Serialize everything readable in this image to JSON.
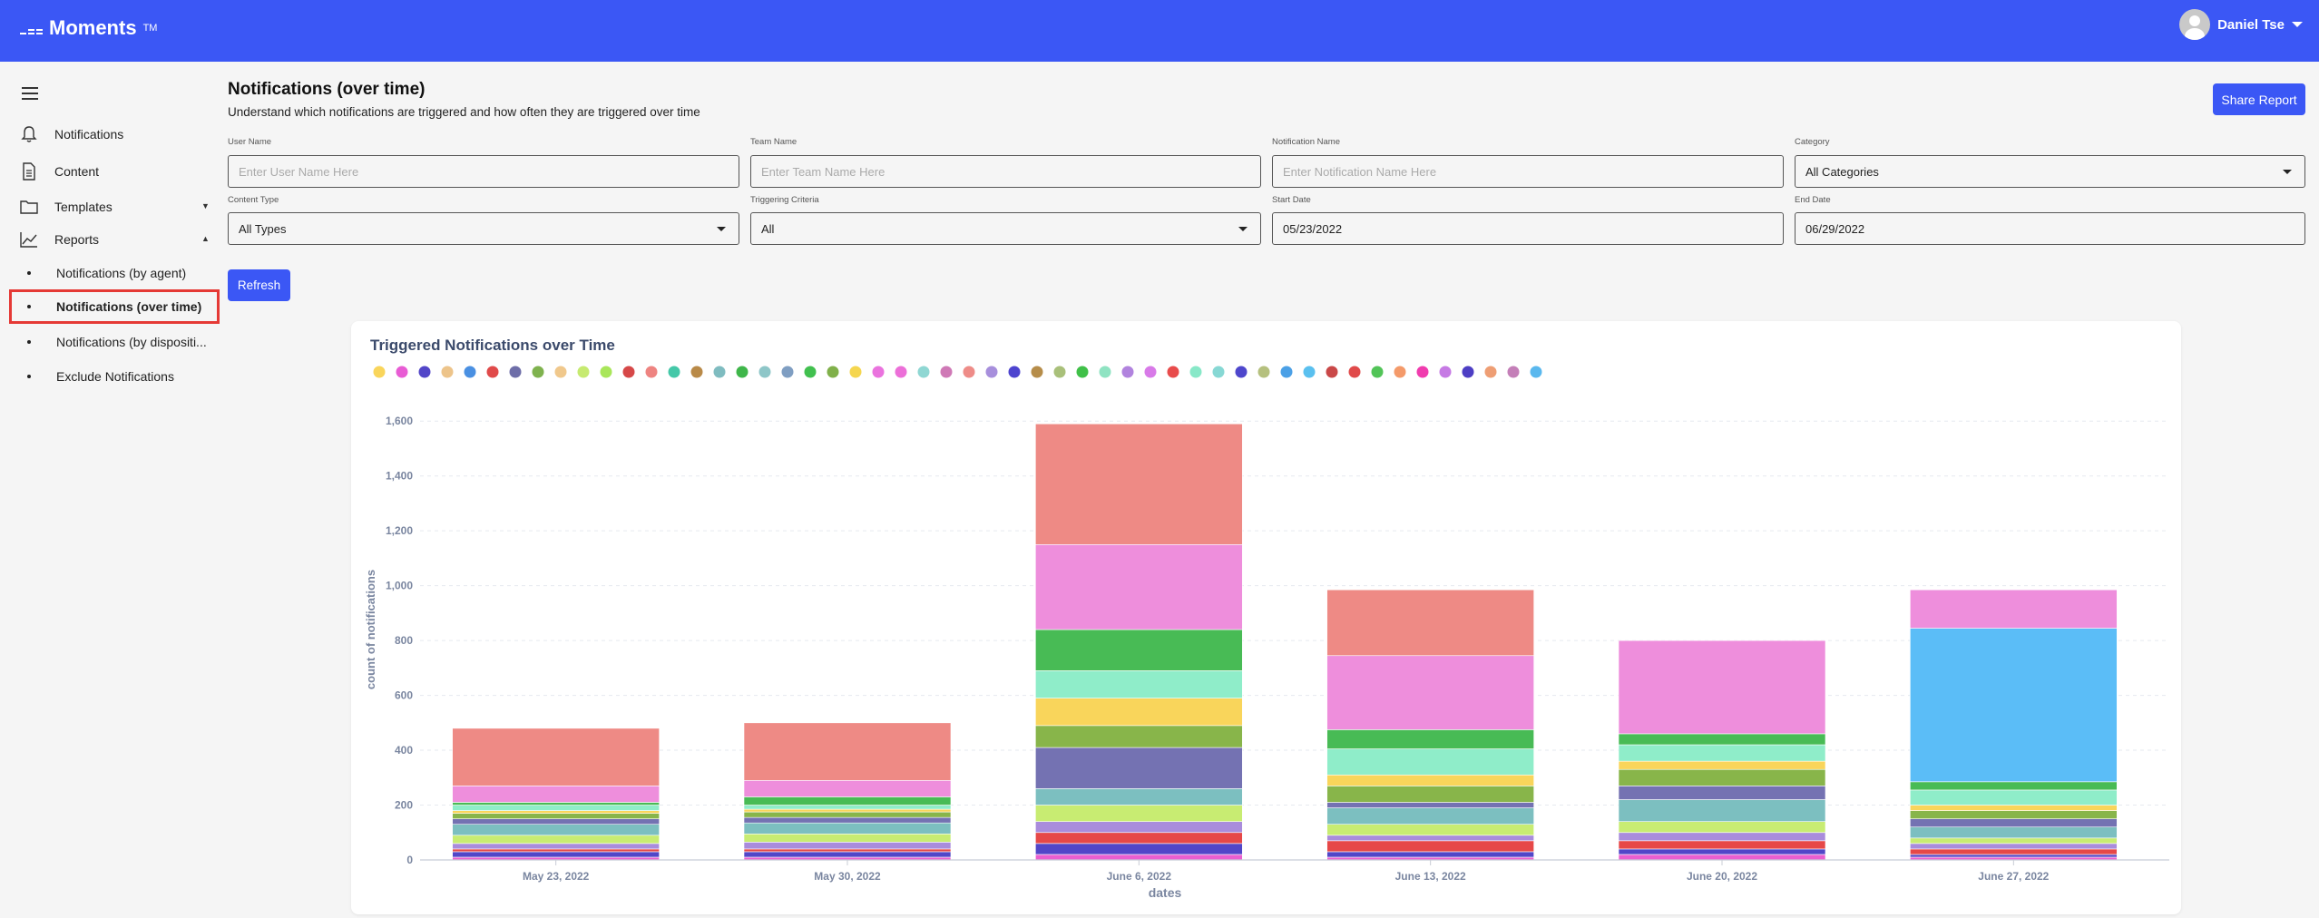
{
  "app": {
    "name": "Moments",
    "trademark": "TM"
  },
  "user": {
    "name": "Daniel Tse"
  },
  "sidebar": {
    "items": [
      {
        "label": "Notifications"
      },
      {
        "label": "Content"
      },
      {
        "label": "Templates"
      },
      {
        "label": "Reports"
      }
    ],
    "subitems": [
      {
        "label": "Notifications (by agent)"
      },
      {
        "label": "Notifications (over time)"
      },
      {
        "label": "Notifications (by dispositi..."
      },
      {
        "label": "Exclude Notifications"
      }
    ]
  },
  "header": {
    "title": "Notifications (over time)",
    "subtitle": "Understand which notifications are triggered and how often they are triggered over time",
    "share_label": "Share Report"
  },
  "filters": {
    "user_name": {
      "label": "User Name",
      "placeholder": "Enter User Name Here"
    },
    "team_name": {
      "label": "Team Name",
      "placeholder": "Enter Team Name Here"
    },
    "notification_name": {
      "label": "Notification Name",
      "placeholder": "Enter Notification Name Here"
    },
    "category": {
      "label": "Category",
      "value": "All Categories"
    },
    "content_type": {
      "label": "Content Type",
      "value": "All Types"
    },
    "triggering_criteria": {
      "label": "Triggering Criteria",
      "value": "All"
    },
    "start_date": {
      "label": "Start Date",
      "value": "05/23/2022"
    },
    "end_date": {
      "label": "End Date",
      "value": "06/29/2022"
    },
    "refresh_label": "Refresh"
  },
  "chart_data": {
    "type": "bar",
    "stacked": true,
    "title": "Triggered Notifications over Time",
    "xlabel": "dates",
    "ylabel": "count of notifications",
    "ylim": [
      0,
      1700
    ],
    "yticks": [
      0,
      200,
      400,
      600,
      800,
      1000,
      1200,
      1400,
      1600
    ],
    "ytick_labels": [
      "0",
      "200",
      "400",
      "600",
      "800",
      "1,000",
      "1,200",
      "1,400",
      "1,600"
    ],
    "categories": [
      "May 23, 2022",
      "May 30, 2022",
      "June 6, 2022",
      "June 13, 2022",
      "June 20, 2022",
      "June 27, 2022"
    ],
    "legend_colors": [
      "#f9d55b",
      "#e85cd4",
      "#5246c8",
      "#edc48a",
      "#4a90e2",
      "#e04a4a",
      "#6e6ea8",
      "#7fb24e",
      "#f0c88c",
      "#c6ea70",
      "#a9e65a",
      "#d64848",
      "#ee8481",
      "#44c8a8",
      "#b98a48",
      "#7fbcc0",
      "#3fb64a",
      "#8ec6c8",
      "#7f9ec2",
      "#41c04f",
      "#80b04a",
      "#f5d64f",
      "#ea73de",
      "#ec6fd8",
      "#8fd7d3",
      "#cf79b6",
      "#ee8c88",
      "#a78fdc",
      "#4d44cf",
      "#b68d4a",
      "#a9c07a",
      "#40c048",
      "#8fe3c2",
      "#b183de",
      "#d87ae8",
      "#e84b4b",
      "#88e8c8",
      "#87d8d4",
      "#4e47cc",
      "#b5c07e",
      "#4ba0e6",
      "#5ac0ef",
      "#c94848",
      "#e04a4a",
      "#52c458",
      "#f49a6a",
      "#f03cae",
      "#c67ae4",
      "#4d3ec4",
      "#ee9e74",
      "#c47fb8",
      "#5ab8ee"
    ],
    "series": [
      {
        "color": "#ee8a85",
        "values": [
          210,
          210,
          440,
          240,
          0,
          0
        ]
      },
      {
        "color": "#ee8edc",
        "values": [
          60,
          60,
          310,
          270,
          340,
          140
        ]
      },
      {
        "color": "#5bbdf7",
        "values": [
          0,
          0,
          0,
          0,
          0,
          560
        ]
      },
      {
        "color": "#48bb55",
        "values": [
          10,
          30,
          150,
          70,
          40,
          30
        ]
      },
      {
        "color": "#8fedc9",
        "values": [
          20,
          15,
          100,
          95,
          60,
          55
        ]
      },
      {
        "color": "#f9d55b",
        "values": [
          10,
          10,
          100,
          40,
          30,
          20
        ]
      },
      {
        "color": "#88b54a",
        "values": [
          20,
          20,
          80,
          60,
          60,
          30
        ]
      },
      {
        "color": "#7472b2",
        "values": [
          20,
          20,
          150,
          20,
          50,
          30
        ]
      },
      {
        "color": "#7cbfc0",
        "values": [
          40,
          40,
          60,
          60,
          80,
          40
        ]
      },
      {
        "color": "#c8ec72",
        "values": [
          30,
          30,
          60,
          40,
          40,
          20
        ]
      },
      {
        "color": "#a98cdc",
        "values": [
          20,
          25,
          40,
          20,
          30,
          20
        ]
      },
      {
        "color": "#e64848",
        "values": [
          10,
          10,
          40,
          40,
          30,
          20
        ]
      },
      {
        "color": "#5246c8",
        "values": [
          20,
          20,
          40,
          20,
          20,
          10
        ]
      },
      {
        "color": "#ea5fd0",
        "values": [
          10,
          10,
          20,
          10,
          20,
          10
        ]
      }
    ]
  }
}
